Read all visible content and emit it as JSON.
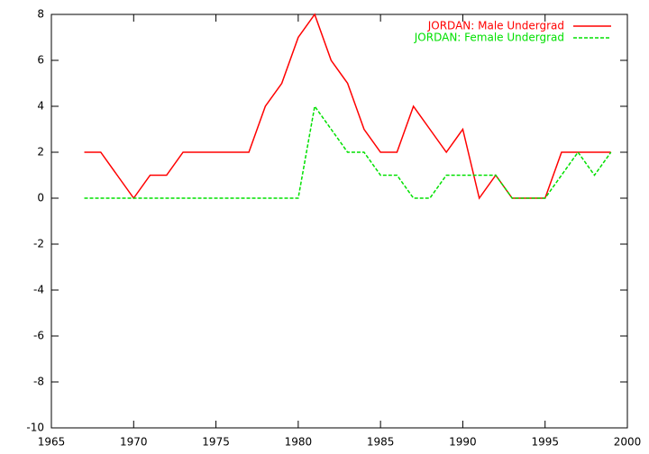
{
  "chart_data": {
    "type": "line",
    "x": [
      1967,
      1968,
      1969,
      1970,
      1971,
      1972,
      1973,
      1974,
      1975,
      1976,
      1977,
      1978,
      1979,
      1980,
      1981,
      1982,
      1983,
      1984,
      1985,
      1986,
      1987,
      1988,
      1989,
      1990,
      1991,
      1992,
      1993,
      1994,
      1995,
      1996,
      1997,
      1998,
      1999
    ],
    "series": [
      {
        "name": "JORDAN: Male Undergrad",
        "color": "#ff0000",
        "dash": false,
        "values": [
          2,
          2,
          1,
          0,
          1,
          1,
          2,
          2,
          2,
          2,
          2,
          4,
          5,
          7,
          8,
          6,
          5,
          3,
          2,
          2,
          4,
          3,
          2,
          3,
          0,
          1,
          0,
          0,
          0,
          2,
          2,
          2,
          2
        ]
      },
      {
        "name": "JORDAN: Female Undergrad",
        "color": "#00e000",
        "dash": true,
        "values": [
          0,
          0,
          0,
          0,
          0,
          0,
          0,
          0,
          0,
          0,
          0,
          0,
          0,
          0,
          4,
          3,
          2,
          2,
          1,
          1,
          0,
          0,
          1,
          1,
          1,
          1,
          0,
          0,
          0,
          1,
          2,
          1,
          2
        ]
      }
    ],
    "xlim": [
      1965,
      2000
    ],
    "xticks": [
      1965,
      1970,
      1975,
      1980,
      1985,
      1990,
      1995,
      2000
    ],
    "ylim": [
      -10,
      8
    ],
    "yticks": [
      -10,
      -8,
      -6,
      -4,
      -2,
      0,
      2,
      4,
      6,
      8
    ],
    "legend": "top-right"
  }
}
